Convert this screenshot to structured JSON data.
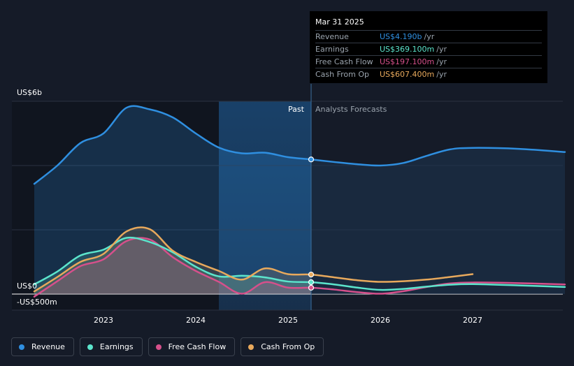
{
  "chart_data": {
    "type": "line",
    "title": "",
    "y_axis_labels": {
      "top": "US$6b",
      "zero": "US$0",
      "bottom": "-US$500m"
    },
    "ylim": [
      -500,
      6000
    ],
    "xlim": [
      2022.25,
      2028.0
    ],
    "x_ticks": [
      "2023",
      "2024",
      "2025",
      "2026",
      "2027"
    ],
    "past_label": "Past",
    "forecast_label": "Analysts Forecasts",
    "highlight_x": 2025.25,
    "past_shade_start": 2024.25,
    "series": [
      {
        "name": "Revenue",
        "color": "#2f8fe0",
        "fill": true,
        "points": [
          [
            2022.25,
            3430
          ],
          [
            2022.5,
            4000
          ],
          [
            2022.75,
            4700
          ],
          [
            2023.0,
            5000
          ],
          [
            2023.25,
            5800
          ],
          [
            2023.5,
            5750
          ],
          [
            2023.75,
            5500
          ],
          [
            2024.0,
            5000
          ],
          [
            2024.25,
            4560
          ],
          [
            2024.5,
            4380
          ],
          [
            2024.75,
            4400
          ],
          [
            2025.0,
            4260
          ],
          [
            2025.25,
            4190
          ],
          [
            2025.5,
            4110
          ],
          [
            2025.75,
            4040
          ],
          [
            2026.0,
            4000
          ],
          [
            2026.25,
            4080
          ],
          [
            2026.5,
            4300
          ],
          [
            2026.75,
            4500
          ],
          [
            2027.0,
            4550
          ],
          [
            2027.5,
            4520
          ],
          [
            2028.0,
            4420
          ]
        ]
      },
      {
        "name": "Earnings",
        "color": "#5ce5cc",
        "fill": true,
        "points": [
          [
            2022.25,
            300
          ],
          [
            2022.5,
            700
          ],
          [
            2022.75,
            1200
          ],
          [
            2023.0,
            1380
          ],
          [
            2023.25,
            1750
          ],
          [
            2023.5,
            1620
          ],
          [
            2023.75,
            1300
          ],
          [
            2024.0,
            850
          ],
          [
            2024.25,
            550
          ],
          [
            2024.5,
            570
          ],
          [
            2024.75,
            520
          ],
          [
            2025.0,
            390
          ],
          [
            2025.25,
            369
          ],
          [
            2025.5,
            300
          ],
          [
            2025.75,
            200
          ],
          [
            2026.0,
            130
          ],
          [
            2026.25,
            160
          ],
          [
            2026.5,
            230
          ],
          [
            2026.75,
            290
          ],
          [
            2027.0,
            310
          ],
          [
            2027.5,
            270
          ],
          [
            2028.0,
            220
          ]
        ]
      },
      {
        "name": "Free Cash Flow",
        "color": "#d6508b",
        "fill": true,
        "points": [
          [
            2022.25,
            -80
          ],
          [
            2022.5,
            400
          ],
          [
            2022.75,
            870
          ],
          [
            2023.0,
            1080
          ],
          [
            2023.25,
            1650
          ],
          [
            2023.5,
            1700
          ],
          [
            2023.75,
            1150
          ],
          [
            2024.0,
            720
          ],
          [
            2024.25,
            380
          ],
          [
            2024.5,
            10
          ],
          [
            2024.75,
            370
          ],
          [
            2025.0,
            200
          ],
          [
            2025.25,
            197
          ],
          [
            2025.5,
            140
          ],
          [
            2025.75,
            60
          ],
          [
            2026.0,
            10
          ],
          [
            2026.25,
            90
          ],
          [
            2026.5,
            220
          ],
          [
            2026.75,
            330
          ],
          [
            2027.0,
            360
          ],
          [
            2027.5,
            340
          ],
          [
            2028.0,
            300
          ]
        ]
      },
      {
        "name": "Cash From Op",
        "color": "#e8a95c",
        "fill": true,
        "points": [
          [
            2022.25,
            80
          ],
          [
            2022.5,
            530
          ],
          [
            2022.75,
            1000
          ],
          [
            2023.0,
            1250
          ],
          [
            2023.25,
            1950
          ],
          [
            2023.5,
            2020
          ],
          [
            2023.75,
            1350
          ],
          [
            2024.0,
            1000
          ],
          [
            2024.25,
            720
          ],
          [
            2024.5,
            450
          ],
          [
            2024.75,
            800
          ],
          [
            2025.0,
            620
          ],
          [
            2025.25,
            607
          ],
          [
            2025.5,
            520
          ],
          [
            2025.75,
            430
          ],
          [
            2026.0,
            380
          ],
          [
            2026.25,
            400
          ],
          [
            2026.5,
            450
          ],
          [
            2026.75,
            530
          ],
          [
            2027.0,
            620
          ]
        ]
      }
    ],
    "tooltip": {
      "date": "Mar 31 2025",
      "rows": [
        {
          "name": "Revenue",
          "value": "US$4.190b",
          "unit": "/yr",
          "color": "#2f8fe0"
        },
        {
          "name": "Earnings",
          "value": "US$369.100m",
          "unit": "/yr",
          "color": "#5ce5cc"
        },
        {
          "name": "Free Cash Flow",
          "value": "US$197.100m",
          "unit": "/yr",
          "color": "#d6508b"
        },
        {
          "name": "Cash From Op",
          "value": "US$607.400m",
          "unit": "/yr",
          "color": "#e8a95c"
        }
      ]
    },
    "legend": [
      {
        "name": "Revenue",
        "color": "#2f8fe0"
      },
      {
        "name": "Earnings",
        "color": "#5ce5cc"
      },
      {
        "name": "Free Cash Flow",
        "color": "#d6508b"
      },
      {
        "name": "Cash From Op",
        "color": "#e8a95c"
      }
    ]
  }
}
